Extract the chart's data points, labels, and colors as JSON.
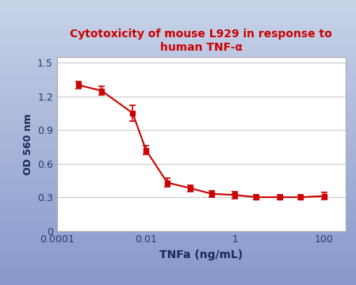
{
  "title_line1": "Cytotoxicity of mouse L929 in response to",
  "title_line2": "human TNF-α",
  "xlabel": "TNFa (ng/mL)",
  "ylabel": "OD 560 nm",
  "title_color": "#cc0000",
  "line_color": "#cc0000",
  "marker_color": "#cc0000",
  "bg_top_color": "#c8d4e8",
  "bg_bottom_color": "#8898cc",
  "plot_bg_color": "#ffffff",
  "tick_label_color": "#2a3a6a",
  "axis_label_color": "#1a2a5a",
  "x_values": [
    0.0003,
    0.001,
    0.005,
    0.01,
    0.03,
    0.1,
    0.3,
    1.0,
    3.0,
    10.0,
    30.0,
    100.0
  ],
  "y_values": [
    1.3,
    1.25,
    1.05,
    0.72,
    0.43,
    0.38,
    0.33,
    0.32,
    0.3,
    0.3,
    0.3,
    0.31
  ],
  "y_errors": [
    0.03,
    0.04,
    0.07,
    0.04,
    0.04,
    0.03,
    0.03,
    0.03,
    0.02,
    0.02,
    0.02,
    0.03
  ],
  "ylim": [
    0,
    1.55
  ],
  "yticks": [
    0,
    0.3,
    0.6,
    0.9,
    1.2,
    1.5
  ],
  "xtick_labels": [
    "0.0001",
    "0.01",
    "1",
    "100"
  ],
  "xtick_values": [
    0.0001,
    0.01,
    1,
    100
  ],
  "figsize": [
    4.49,
    3.6
  ],
  "dpi": 100
}
